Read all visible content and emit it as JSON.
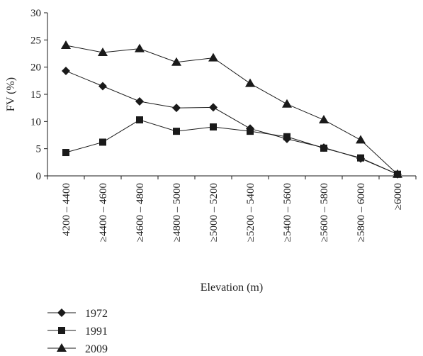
{
  "chart_data": {
    "type": "line",
    "xlabel": "Elevation (m)",
    "ylabel": "FV (%)",
    "ylim": [
      0,
      30
    ],
    "yticks": [
      0,
      5,
      10,
      15,
      20,
      25,
      30
    ],
    "grid": false,
    "legend_position": "bottom-left",
    "categories": [
      "4200 – 4400",
      "≥4400 – 4600",
      "≥4600 – 4800",
      "≥4800 – 5000",
      "≥5000 – 5200",
      "≥5200 – 5400",
      "≥5400 – 5600",
      "≥5600 – 5800",
      "≥5800 – 6000",
      "≥6000"
    ],
    "series": [
      {
        "name": "1972",
        "marker": "diamond",
        "values": [
          19.3,
          16.5,
          13.7,
          12.5,
          12.6,
          8.7,
          6.8,
          5.2,
          3.2,
          0.3
        ]
      },
      {
        "name": "1991",
        "marker": "square",
        "values": [
          4.3,
          6.2,
          10.3,
          8.2,
          9.0,
          8.2,
          7.2,
          5.1,
          3.3,
          0.3
        ]
      },
      {
        "name": "2009",
        "marker": "triangle",
        "values": [
          24.0,
          22.7,
          23.4,
          20.9,
          21.7,
          17.0,
          13.2,
          10.3,
          6.6,
          0.3
        ]
      }
    ],
    "color": "#1a1a1a"
  }
}
